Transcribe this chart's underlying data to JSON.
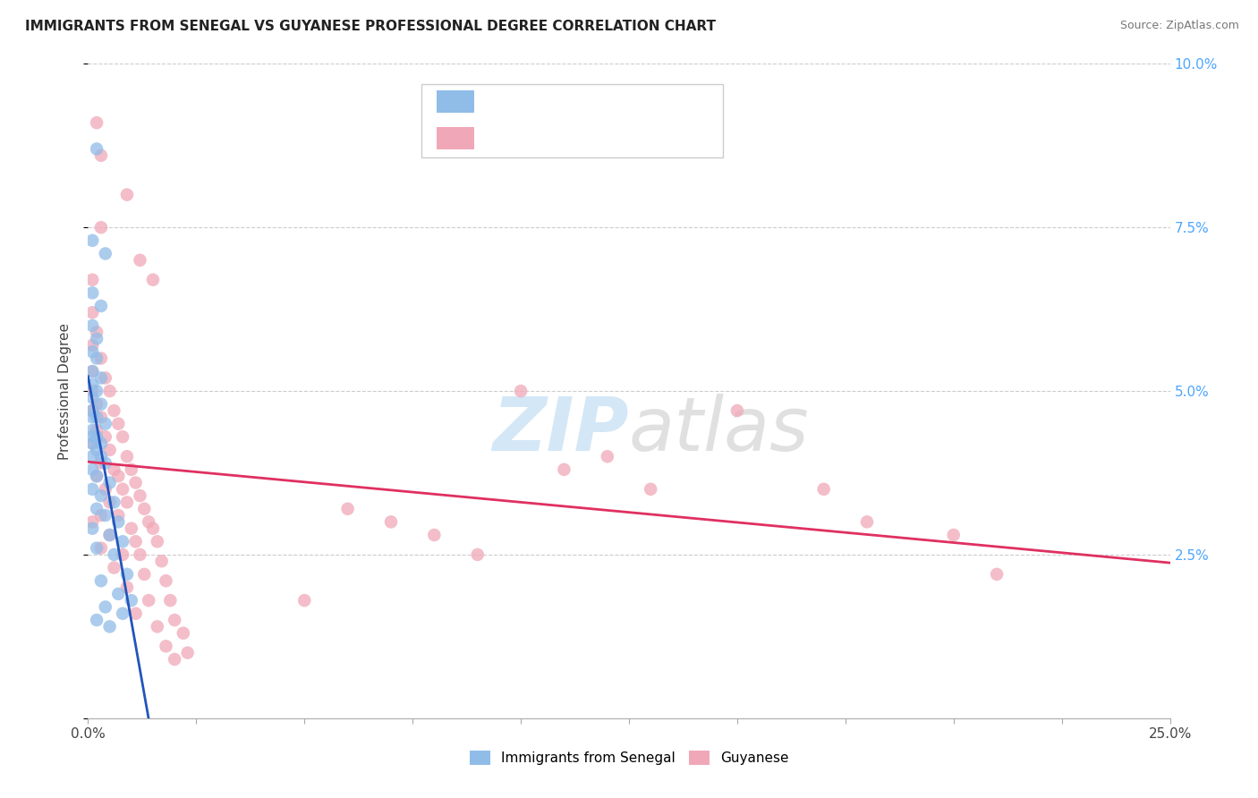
{
  "title": "IMMIGRANTS FROM SENEGAL VS GUYANESE PROFESSIONAL DEGREE CORRELATION CHART",
  "source": "Source: ZipAtlas.com",
  "ylabel_label": "Professional Degree",
  "xmin": 0.0,
  "xmax": 0.25,
  "ymin": 0.0,
  "ymax": 0.1,
  "xticks": [
    0.0,
    0.025,
    0.05,
    0.075,
    0.1,
    0.125,
    0.15,
    0.175,
    0.2,
    0.225,
    0.25
  ],
  "xticklabels_show": {
    "0.0": "0.0%",
    "0.25": "25.0%"
  },
  "yticks": [
    0.0,
    0.025,
    0.05,
    0.075,
    0.1
  ],
  "yticklabels_right": [
    "",
    "2.5%",
    "5.0%",
    "7.5%",
    "10.0%"
  ],
  "senegal_color": "#90bce8",
  "guyanese_color": "#f0a8b8",
  "trend_senegal_color": "#2255bb",
  "trend_guyanese_color": "#e03060",
  "senegal_points": [
    [
      0.002,
      0.087
    ],
    [
      0.001,
      0.073
    ],
    [
      0.004,
      0.071
    ],
    [
      0.001,
      0.065
    ],
    [
      0.003,
      0.063
    ],
    [
      0.001,
      0.06
    ],
    [
      0.002,
      0.058
    ],
    [
      0.001,
      0.056
    ],
    [
      0.002,
      0.055
    ],
    [
      0.001,
      0.053
    ],
    [
      0.003,
      0.052
    ],
    [
      0.001,
      0.051
    ],
    [
      0.002,
      0.05
    ],
    [
      0.001,
      0.049
    ],
    [
      0.003,
      0.048
    ],
    [
      0.001,
      0.047
    ],
    [
      0.002,
      0.046
    ],
    [
      0.001,
      0.046
    ],
    [
      0.004,
      0.045
    ],
    [
      0.001,
      0.044
    ],
    [
      0.002,
      0.043
    ],
    [
      0.001,
      0.043
    ],
    [
      0.003,
      0.042
    ],
    [
      0.001,
      0.042
    ],
    [
      0.002,
      0.041
    ],
    [
      0.001,
      0.04
    ],
    [
      0.003,
      0.04
    ],
    [
      0.004,
      0.039
    ],
    [
      0.001,
      0.038
    ],
    [
      0.002,
      0.037
    ],
    [
      0.005,
      0.036
    ],
    [
      0.001,
      0.035
    ],
    [
      0.003,
      0.034
    ],
    [
      0.006,
      0.033
    ],
    [
      0.002,
      0.032
    ],
    [
      0.004,
      0.031
    ],
    [
      0.007,
      0.03
    ],
    [
      0.001,
      0.029
    ],
    [
      0.005,
      0.028
    ],
    [
      0.008,
      0.027
    ],
    [
      0.002,
      0.026
    ],
    [
      0.006,
      0.025
    ],
    [
      0.009,
      0.022
    ],
    [
      0.003,
      0.021
    ],
    [
      0.007,
      0.019
    ],
    [
      0.01,
      0.018
    ],
    [
      0.004,
      0.017
    ],
    [
      0.008,
      0.016
    ],
    [
      0.002,
      0.015
    ],
    [
      0.005,
      0.014
    ]
  ],
  "guyanese_points": [
    [
      0.002,
      0.091
    ],
    [
      0.003,
      0.086
    ],
    [
      0.009,
      0.08
    ],
    [
      0.003,
      0.075
    ],
    [
      0.012,
      0.07
    ],
    [
      0.001,
      0.067
    ],
    [
      0.015,
      0.067
    ],
    [
      0.001,
      0.062
    ],
    [
      0.002,
      0.059
    ],
    [
      0.001,
      0.057
    ],
    [
      0.003,
      0.055
    ],
    [
      0.001,
      0.053
    ],
    [
      0.004,
      0.052
    ],
    [
      0.001,
      0.05
    ],
    [
      0.005,
      0.05
    ],
    [
      0.002,
      0.048
    ],
    [
      0.006,
      0.047
    ],
    [
      0.001,
      0.047
    ],
    [
      0.003,
      0.046
    ],
    [
      0.007,
      0.045
    ],
    [
      0.002,
      0.044
    ],
    [
      0.004,
      0.043
    ],
    [
      0.008,
      0.043
    ],
    [
      0.001,
      0.042
    ],
    [
      0.005,
      0.041
    ],
    [
      0.009,
      0.04
    ],
    [
      0.003,
      0.039
    ],
    [
      0.006,
      0.038
    ],
    [
      0.01,
      0.038
    ],
    [
      0.002,
      0.037
    ],
    [
      0.007,
      0.037
    ],
    [
      0.011,
      0.036
    ],
    [
      0.004,
      0.035
    ],
    [
      0.008,
      0.035
    ],
    [
      0.012,
      0.034
    ],
    [
      0.005,
      0.033
    ],
    [
      0.009,
      0.033
    ],
    [
      0.013,
      0.032
    ],
    [
      0.003,
      0.031
    ],
    [
      0.007,
      0.031
    ],
    [
      0.014,
      0.03
    ],
    [
      0.001,
      0.03
    ],
    [
      0.01,
      0.029
    ],
    [
      0.015,
      0.029
    ],
    [
      0.005,
      0.028
    ],
    [
      0.011,
      0.027
    ],
    [
      0.016,
      0.027
    ],
    [
      0.003,
      0.026
    ],
    [
      0.008,
      0.025
    ],
    [
      0.012,
      0.025
    ],
    [
      0.017,
      0.024
    ],
    [
      0.006,
      0.023
    ],
    [
      0.013,
      0.022
    ],
    [
      0.018,
      0.021
    ],
    [
      0.009,
      0.02
    ],
    [
      0.014,
      0.018
    ],
    [
      0.019,
      0.018
    ],
    [
      0.011,
      0.016
    ],
    [
      0.02,
      0.015
    ],
    [
      0.016,
      0.014
    ],
    [
      0.022,
      0.013
    ],
    [
      0.018,
      0.011
    ],
    [
      0.023,
      0.01
    ],
    [
      0.02,
      0.009
    ],
    [
      0.15,
      0.047
    ],
    [
      0.1,
      0.05
    ],
    [
      0.12,
      0.04
    ],
    [
      0.13,
      0.035
    ],
    [
      0.17,
      0.035
    ],
    [
      0.18,
      0.03
    ],
    [
      0.2,
      0.028
    ],
    [
      0.21,
      0.022
    ],
    [
      0.05,
      0.018
    ],
    [
      0.06,
      0.032
    ],
    [
      0.07,
      0.03
    ],
    [
      0.08,
      0.028
    ],
    [
      0.09,
      0.025
    ],
    [
      0.11,
      0.038
    ]
  ]
}
